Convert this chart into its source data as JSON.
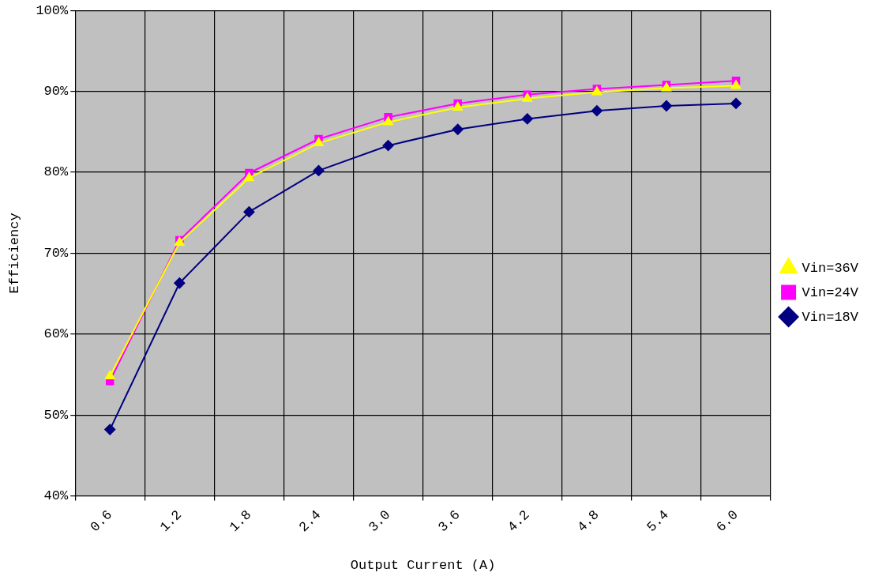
{
  "chart_data": {
    "type": "line",
    "xlabel": "Output Current (A)",
    "ylabel": "Efficiency",
    "categories": [
      "0.6",
      "1.2",
      "1.8",
      "2.4",
      "3.0",
      "3.6",
      "4.2",
      "4.8",
      "5.4",
      "6.0"
    ],
    "series": [
      {
        "name": "Vin=18V",
        "color": "#000080",
        "marker": "diamond",
        "values": [
          48.2,
          66.3,
          75.1,
          80.2,
          83.3,
          85.3,
          86.6,
          87.6,
          88.2,
          88.5
        ]
      },
      {
        "name": "Vin=24V",
        "color": "#ff00ff",
        "marker": "square",
        "values": [
          54.2,
          71.6,
          79.9,
          84.1,
          86.8,
          88.5,
          89.6,
          90.3,
          90.8,
          91.3
        ]
      },
      {
        "name": "Vin=36V",
        "color": "#ffff00",
        "marker": "triangle",
        "values": [
          54.8,
          71.3,
          79.3,
          83.6,
          86.2,
          88.0,
          89.1,
          89.9,
          90.4,
          90.7
        ]
      }
    ],
    "ylim": [
      40,
      100
    ],
    "yticks": [
      {
        "value": 40,
        "label": "40%"
      },
      {
        "value": 50,
        "label": "50%"
      },
      {
        "value": 60,
        "label": "60%"
      },
      {
        "value": 70,
        "label": "70%"
      },
      {
        "value": 80,
        "label": "80%"
      },
      {
        "value": 90,
        "label": "90%"
      },
      {
        "value": 100,
        "label": "100%"
      }
    ],
    "grid": true,
    "legend": "right"
  }
}
